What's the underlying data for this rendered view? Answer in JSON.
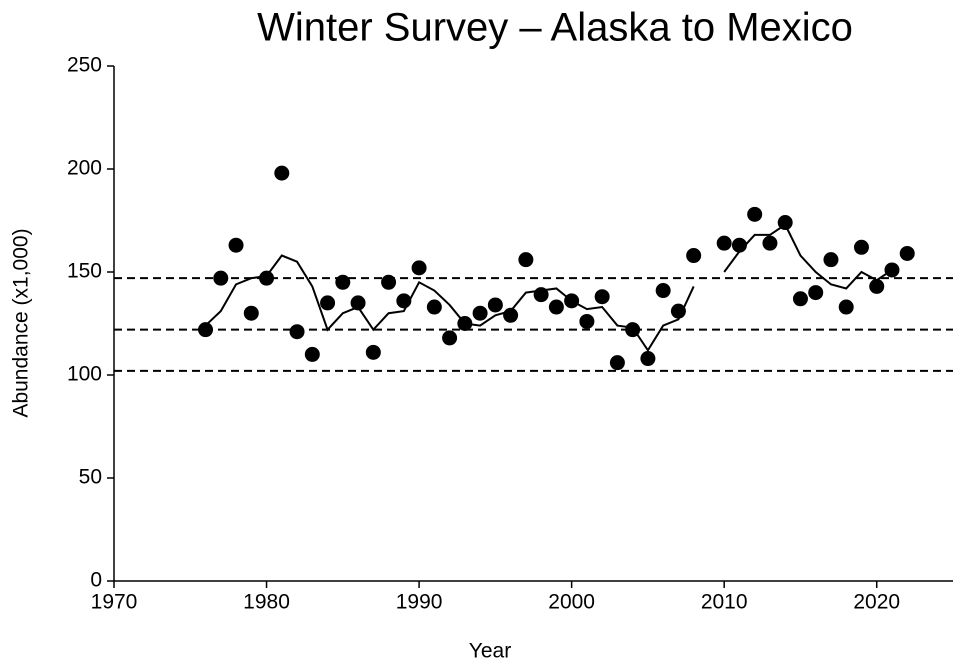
{
  "chart_data": {
    "type": "scatter",
    "title": "Winter Survey – Alaska to Mexico",
    "x_label": "Year",
    "y_label": "Abundance (x1,000)",
    "x": [
      1976,
      1977,
      1978,
      1979,
      1980,
      1981,
      1982,
      1983,
      1984,
      1985,
      1986,
      1987,
      1988,
      1989,
      1990,
      1991,
      1992,
      1993,
      1994,
      1995,
      1996,
      1997,
      1998,
      1999,
      2000,
      2001,
      2002,
      2003,
      2004,
      2005,
      2006,
      2007,
      2008,
      2009,
      2010,
      2011,
      2012,
      2013,
      2014,
      2015,
      2016,
      2017,
      2018,
      2019,
      2020,
      2021,
      2022
    ],
    "series": [
      {
        "color": "#000000",
        "mark": "point",
        "values": [
          122,
          147,
          163,
          130,
          147,
          198,
          121,
          110,
          135,
          145,
          135,
          111,
          145,
          136,
          152,
          133,
          118,
          125,
          130,
          134,
          129,
          156,
          139,
          133,
          136,
          126,
          138,
          106,
          122,
          108,
          141,
          131,
          158,
          null,
          164,
          163,
          178,
          164,
          174,
          137,
          140,
          156,
          133,
          162,
          143,
          151,
          159
        ]
      },
      {
        "color": "#000000",
        "mark": "line",
        "values": [
          124,
          131,
          144,
          147,
          148,
          158,
          155,
          143,
          122,
          130,
          133,
          122,
          130,
          131,
          145,
          141,
          134,
          125,
          124,
          129,
          131,
          140,
          141,
          142,
          136,
          132,
          133,
          124,
          123,
          112,
          124,
          127,
          143,
          null,
          150,
          160,
          168,
          168,
          173,
          158,
          150,
          144,
          142,
          150,
          146,
          151,
          null
        ]
      }
    ],
    "reference_lines": [
      147,
      122,
      102
    ],
    "xlim": [
      1970,
      2025
    ],
    "xticks": [
      1970,
      1980,
      1990,
      2000,
      2010,
      2020
    ],
    "ylim": [
      0,
      250
    ],
    "yticks": [
      0,
      50,
      100,
      150,
      200,
      250
    ]
  }
}
